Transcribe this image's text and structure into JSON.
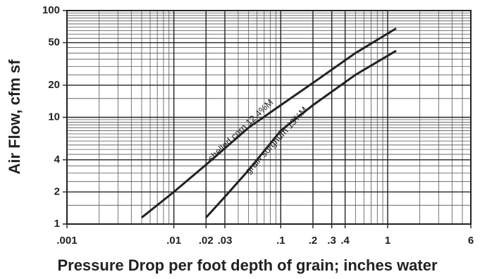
{
  "chart_data": {
    "type": "line",
    "xlabel": "Pressure Drop per foot depth of grain; inches water",
    "ylabel": "Air Flow, cfm sf",
    "log_x": true,
    "log_y": true,
    "grid": true,
    "xlim": [
      0.001,
      6
    ],
    "ylim": [
      1,
      100
    ],
    "xticks": [
      {
        "value": 0.001,
        "label": ".001"
      },
      {
        "value": 0.01,
        "label": ".01"
      },
      {
        "value": 0.02,
        "label": ".02"
      },
      {
        "value": 0.03,
        "label": ".03"
      },
      {
        "value": 0.1,
        "label": ".1"
      },
      {
        "value": 0.2,
        "label": ".2"
      },
      {
        "value": 0.3,
        "label": ".3"
      },
      {
        "value": 0.4,
        "label": ".4"
      },
      1,
      6
    ],
    "yticks": [
      1,
      2,
      4,
      10,
      20,
      50,
      100
    ],
    "series": [
      {
        "name": "shelled corn 12.4%M",
        "color": "#222222",
        "x": [
          0.005,
          0.01,
          0.02,
          0.05,
          0.1,
          0.2,
          0.5,
          1.2
        ],
        "values": [
          1.15,
          2,
          3.6,
          8,
          13,
          21,
          40,
          68
        ]
      },
      {
        "name": "grain sorghum 13%M",
        "color": "#222222",
        "x": [
          0.02,
          0.03,
          0.05,
          0.1,
          0.2,
          0.5,
          1.2
        ],
        "values": [
          1.15,
          1.8,
          3.2,
          7.5,
          13,
          25,
          42
        ]
      }
    ]
  }
}
